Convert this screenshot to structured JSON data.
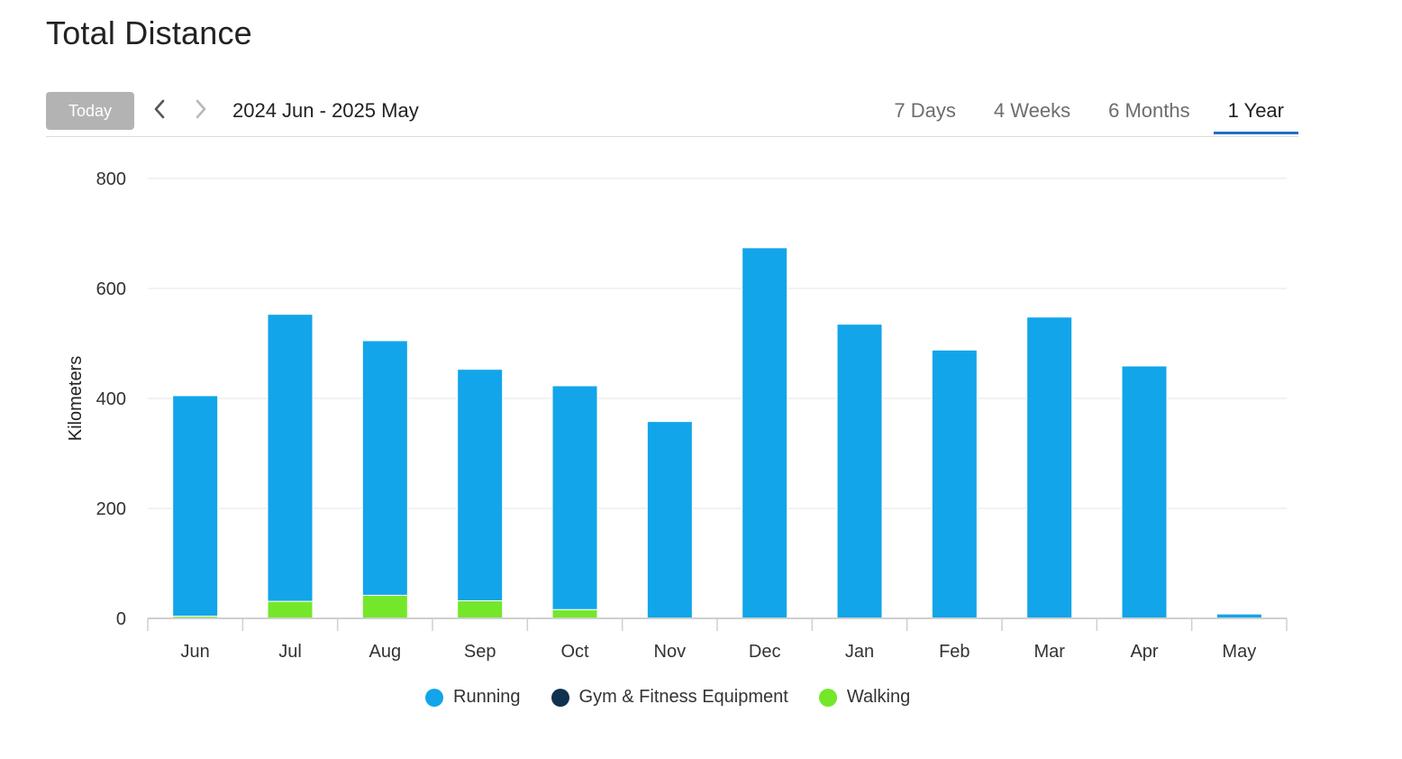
{
  "page": {
    "title": "Total Distance"
  },
  "toolbar": {
    "today_label": "Today",
    "prev_icon": "chevron-left-icon",
    "next_icon": "chevron-right-icon",
    "date_range": "2024 Jun - 2025 May",
    "tabs": [
      {
        "label": "7 Days",
        "active": false
      },
      {
        "label": "4 Weeks",
        "active": false
      },
      {
        "label": "6 Months",
        "active": false
      },
      {
        "label": "1 Year",
        "active": true
      }
    ],
    "accent_color": "#1f6fc4"
  },
  "chart_data": {
    "type": "bar",
    "stacked": true,
    "categories": [
      "Jun",
      "Jul",
      "Aug",
      "Sep",
      "Oct",
      "Nov",
      "Dec",
      "Jan",
      "Feb",
      "Mar",
      "Apr",
      "May"
    ],
    "series": [
      {
        "name": "Running",
        "color": "#12a5e9",
        "values": [
          401,
          522,
          463,
          421,
          407,
          358,
          674,
          535,
          488,
          548,
          459,
          8
        ]
      },
      {
        "name": "Gym & Fitness Equipment",
        "color": "#10324f",
        "values": [
          0,
          0,
          0,
          0,
          0,
          0,
          0,
          0,
          0,
          0,
          0,
          0
        ]
      },
      {
        "name": "Walking",
        "color": "#74e72a",
        "values": [
          4,
          31,
          42,
          32,
          16,
          0,
          0,
          0,
          0,
          0,
          0,
          0
        ]
      }
    ],
    "ylabel": "Kilometers",
    "xlabel": "",
    "ylim": [
      0,
      800
    ],
    "yticks": [
      0,
      200,
      400,
      600,
      800
    ],
    "grid": true,
    "legend_position": "bottom"
  }
}
